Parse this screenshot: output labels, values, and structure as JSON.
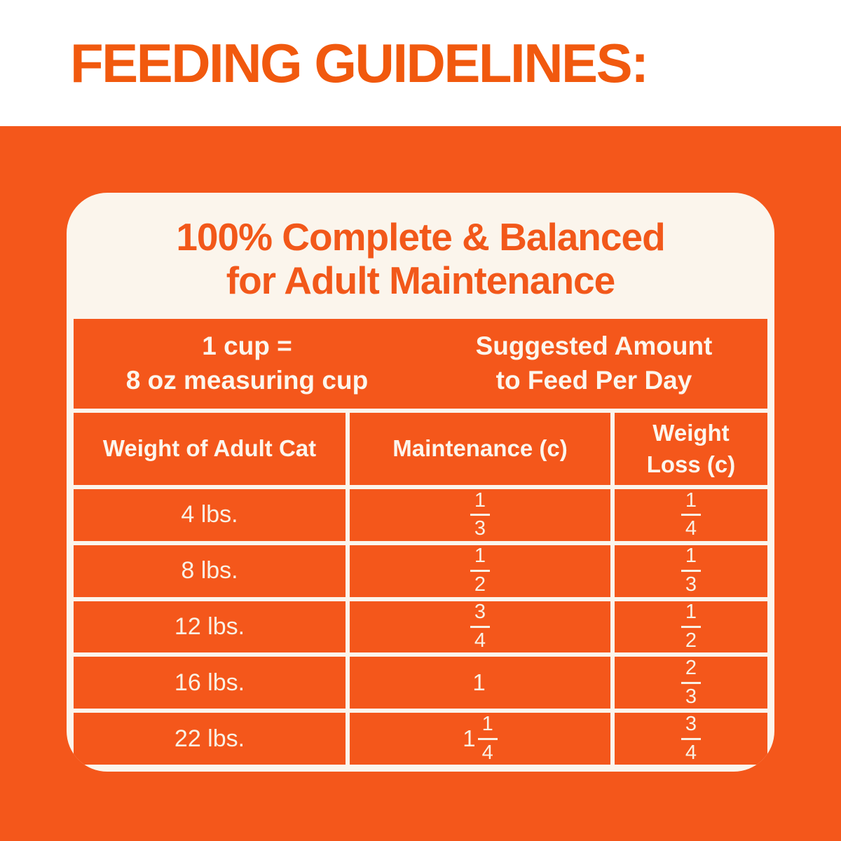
{
  "header": {
    "title": "FEEDING GUIDELINES:"
  },
  "panel": {
    "title_line1": "100% Complete & Balanced",
    "title_line2": "for Adult Maintenance",
    "cup_note_line1": "1 cup =",
    "cup_note_line2": "8 oz measuring cup",
    "suggested_line1": "Suggested Amount",
    "suggested_line2": "to Feed Per Day"
  },
  "table": {
    "columns": [
      "Weight of Adult Cat",
      "Maintenance (c)",
      "Weight Loss (c)"
    ],
    "rows": [
      {
        "weight": "4 lbs.",
        "maintenance": {
          "whole": "",
          "num": "1",
          "den": "3"
        },
        "loss": {
          "whole": "",
          "num": "1",
          "den": "4"
        }
      },
      {
        "weight": "8 lbs.",
        "maintenance": {
          "whole": "",
          "num": "1",
          "den": "2"
        },
        "loss": {
          "whole": "",
          "num": "1",
          "den": "3"
        }
      },
      {
        "weight": "12 lbs.",
        "maintenance": {
          "whole": "",
          "num": "3",
          "den": "4"
        },
        "loss": {
          "whole": "",
          "num": "1",
          "den": "2"
        }
      },
      {
        "weight": "16 lbs.",
        "maintenance": {
          "whole": "1",
          "num": "",
          "den": ""
        },
        "loss": {
          "whole": "",
          "num": "2",
          "den": "3"
        }
      },
      {
        "weight": "22 lbs.",
        "maintenance": {
          "whole": "1",
          "num": "1",
          "den": "4"
        },
        "loss": {
          "whole": "",
          "num": "3",
          "den": "4"
        }
      }
    ]
  },
  "colors": {
    "background_orange": "#F4571B",
    "heading_orange": "#F1590E",
    "panel_cream": "#FBF5EC",
    "cell_text_cream": "#F9F1E4",
    "top_band_white": "#FFFFFF"
  }
}
